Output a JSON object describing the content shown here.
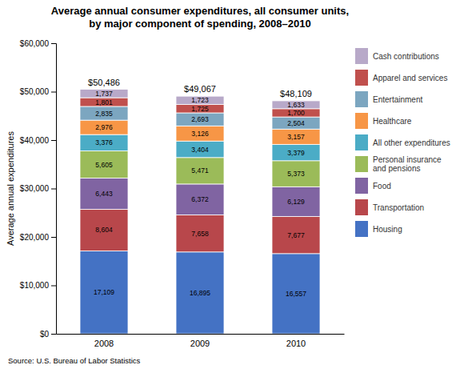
{
  "chart_data": {
    "type": "bar",
    "stacked": true,
    "data_labels": true,
    "grid": false,
    "legend": "right",
    "title": "Average annual consumer expenditures, all consumer units,\nby major component of spending, 2008–2010",
    "ylabel": "Average annual expenditures",
    "source": "Source: U.S. Bureau of Labor Statistics",
    "categories": [
      "2008",
      "2009",
      "2010"
    ],
    "series": [
      {
        "name": "Housing",
        "color": "#4472C4",
        "values": [
          17109,
          16895,
          16557
        ],
        "value_labels": [
          "17,109",
          "16,895",
          "16,557"
        ]
      },
      {
        "name": "Transportation",
        "color": "#B8474B",
        "values": [
          8604,
          7658,
          7677
        ],
        "value_labels": [
          "8,604",
          "7,658",
          "7,677"
        ]
      },
      {
        "name": "Food",
        "color": "#8064A2",
        "values": [
          6443,
          6372,
          6129
        ],
        "value_labels": [
          "6,443",
          "6,372",
          "6,129"
        ]
      },
      {
        "name": "Personal insurance\nand pensions",
        "color": "#9BBB59",
        "values": [
          5605,
          5471,
          5373
        ],
        "value_labels": [
          "5,605",
          "5,471",
          "5,373"
        ]
      },
      {
        "name": "All other expenditures",
        "color": "#4BACC6",
        "values": [
          3376,
          3404,
          3379
        ],
        "value_labels": [
          "3,376",
          "3,404",
          "3,379"
        ]
      },
      {
        "name": "Healthcare",
        "color": "#F79646",
        "values": [
          2976,
          3126,
          3157
        ],
        "value_labels": [
          "2,976",
          "3,126",
          "3,157"
        ]
      },
      {
        "name": "Entertainment",
        "color": "#7CA6C0",
        "values": [
          2835,
          2693,
          2504
        ],
        "value_labels": [
          "2,835",
          "2,693",
          "2,504"
        ]
      },
      {
        "name": "Apparel and services",
        "color": "#C0504D",
        "values": [
          1801,
          1725,
          1700
        ],
        "value_labels": [
          "1,801",
          "1,725",
          "1,700"
        ]
      },
      {
        "name": "Cash contributions",
        "color": "#B8A9C9",
        "values": [
          1737,
          1723,
          1633
        ],
        "value_labels": [
          "1,737",
          "1,723",
          "1,633"
        ]
      }
    ],
    "totals": {
      "values": [
        50486,
        49067,
        48109
      ],
      "value_labels": [
        "$50,486",
        "$49,067",
        "$48,109"
      ]
    },
    "ylim": [
      0,
      60000
    ],
    "yticks": [
      {
        "value": 0,
        "label": "$0"
      },
      {
        "value": 10000,
        "label": "$10,000"
      },
      {
        "value": 20000,
        "label": "$20,000"
      },
      {
        "value": 30000,
        "label": "$30,000"
      },
      {
        "value": 40000,
        "label": "$40,000"
      },
      {
        "value": 50000,
        "label": "$50,000"
      },
      {
        "value": 60000,
        "label": "$60,000"
      }
    ]
  }
}
